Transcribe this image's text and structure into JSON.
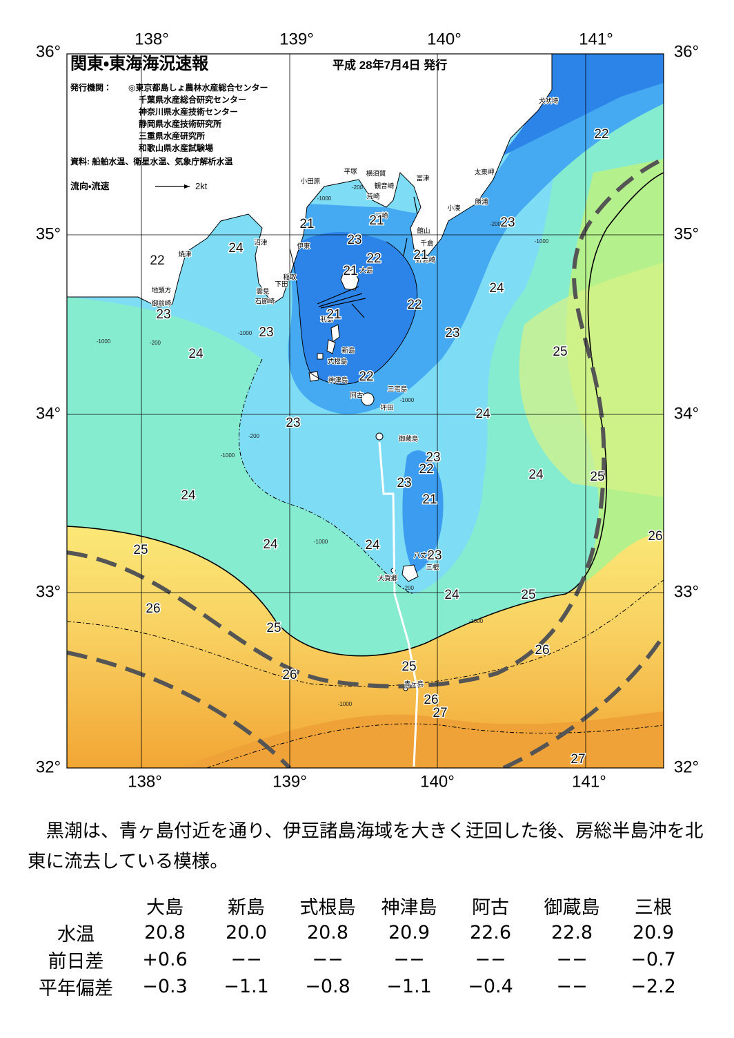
{
  "header": {
    "title": "関東・東海海況速報",
    "date": "平成 28年7月4日 発行",
    "issuer_label": "発行機関：",
    "issuers": [
      "◎東京都島しょ農林水産総合センター",
      "千葉県水産総合研究センター",
      "神奈川県水産技術センター",
      "静岡県水産技術研究所",
      "三重県水産研究所",
      "和歌山県水産試験場"
    ],
    "source": "資料: 船舶水温、衛星水温、気象庁解析水温",
    "legend_label": "流向・流速",
    "legend_scale": "2kt"
  },
  "map": {
    "lon_labels": [
      "138°",
      "139°",
      "140°",
      "141°"
    ],
    "lat_labels": [
      "36°",
      "35°",
      "34°",
      "33°",
      "32°"
    ],
    "places": [
      "犬吠埼",
      "太東岬",
      "勝浦",
      "小湊",
      "富津",
      "横須賀",
      "観音崎",
      "平塚",
      "荒崎",
      "小田原",
      "三崎",
      "館山",
      "千倉",
      "野島崎",
      "沼津",
      "伊東",
      "大島",
      "焼津",
      "稲取",
      "下田",
      "雲見",
      "石廊崎",
      "地頭方",
      "御前崎",
      "利島",
      "新島",
      "式根島",
      "神津島",
      "三宅島",
      "阿古",
      "坪田",
      "御蔵島",
      "八丈島",
      "三根",
      "大賀郷",
      "青ヶ島"
    ],
    "isotherm_labels": [
      "22",
      "23",
      "21",
      "21",
      "23",
      "24",
      "22",
      "22",
      "21",
      "21",
      "24",
      "22",
      "23",
      "21",
      "23",
      "23",
      "24",
      "25",
      "22",
      "24",
      "23",
      "23",
      "22",
      "24",
      "25",
      "23",
      "24",
      "21",
      "26",
      "24",
      "24",
      "25",
      "23",
      "24",
      "25",
      "26",
      "25",
      "26",
      "25",
      "26",
      "26",
      "27",
      "27"
    ],
    "depth_labels": [
      "-1000",
      "-200",
      "-1000",
      "-200",
      "-1000",
      "-1000",
      "-200",
      "-1000",
      "-200",
      "-1000",
      "-1000",
      "-1000",
      "-1000",
      "-200"
    ]
  },
  "summary": "黒潮は、青ヶ島付近を通り、伊豆諸島海域を大きく迂回した後、房総半島沖を北東に流去している模様。",
  "table": {
    "columns": [
      "大島",
      "新島",
      "式根島",
      "神津島",
      "阿古",
      "御蔵島",
      "三根"
    ],
    "rows": [
      {
        "label": "水温",
        "cells": [
          "20.8",
          "20.0",
          "20.8",
          "20.9",
          "22.6",
          "22.8",
          "20.9"
        ]
      },
      {
        "label": "前日差",
        "cells": [
          "+0.6",
          "−−",
          "−−",
          "−−",
          "−−",
          "−−",
          "−0.7"
        ]
      },
      {
        "label": "平年偏差",
        "cells": [
          "−0.3",
          "−1.1",
          "−0.8",
          "−1.1",
          "−0.4",
          "−−",
          "−2.2"
        ]
      }
    ]
  }
}
